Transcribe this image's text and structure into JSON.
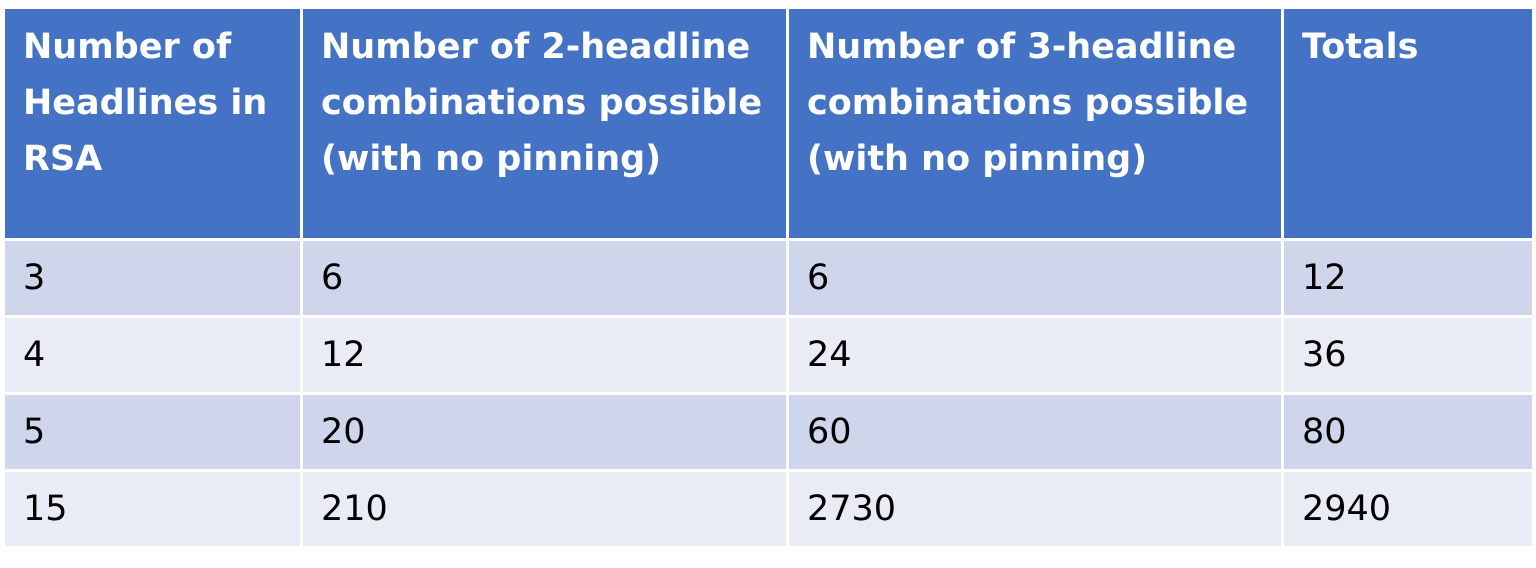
{
  "table": {
    "headers": [
      "Number of Headlines in RSA",
      "Number of 2-headline combinations possible (with no pinning)",
      "Number of 3-headline combinations possible (with no pinning)",
      "Totals"
    ],
    "rows": [
      [
        "3",
        "6",
        "6",
        "12"
      ],
      [
        "4",
        "12",
        "24",
        "36"
      ],
      [
        "5",
        "20",
        "60",
        "80"
      ],
      [
        "15",
        "210",
        "2730",
        "2940"
      ]
    ]
  },
  "colors": {
    "header_bg": "#4472c4",
    "row_odd_bg": "#cfd5ea",
    "row_even_bg": "#e9ebf5"
  }
}
